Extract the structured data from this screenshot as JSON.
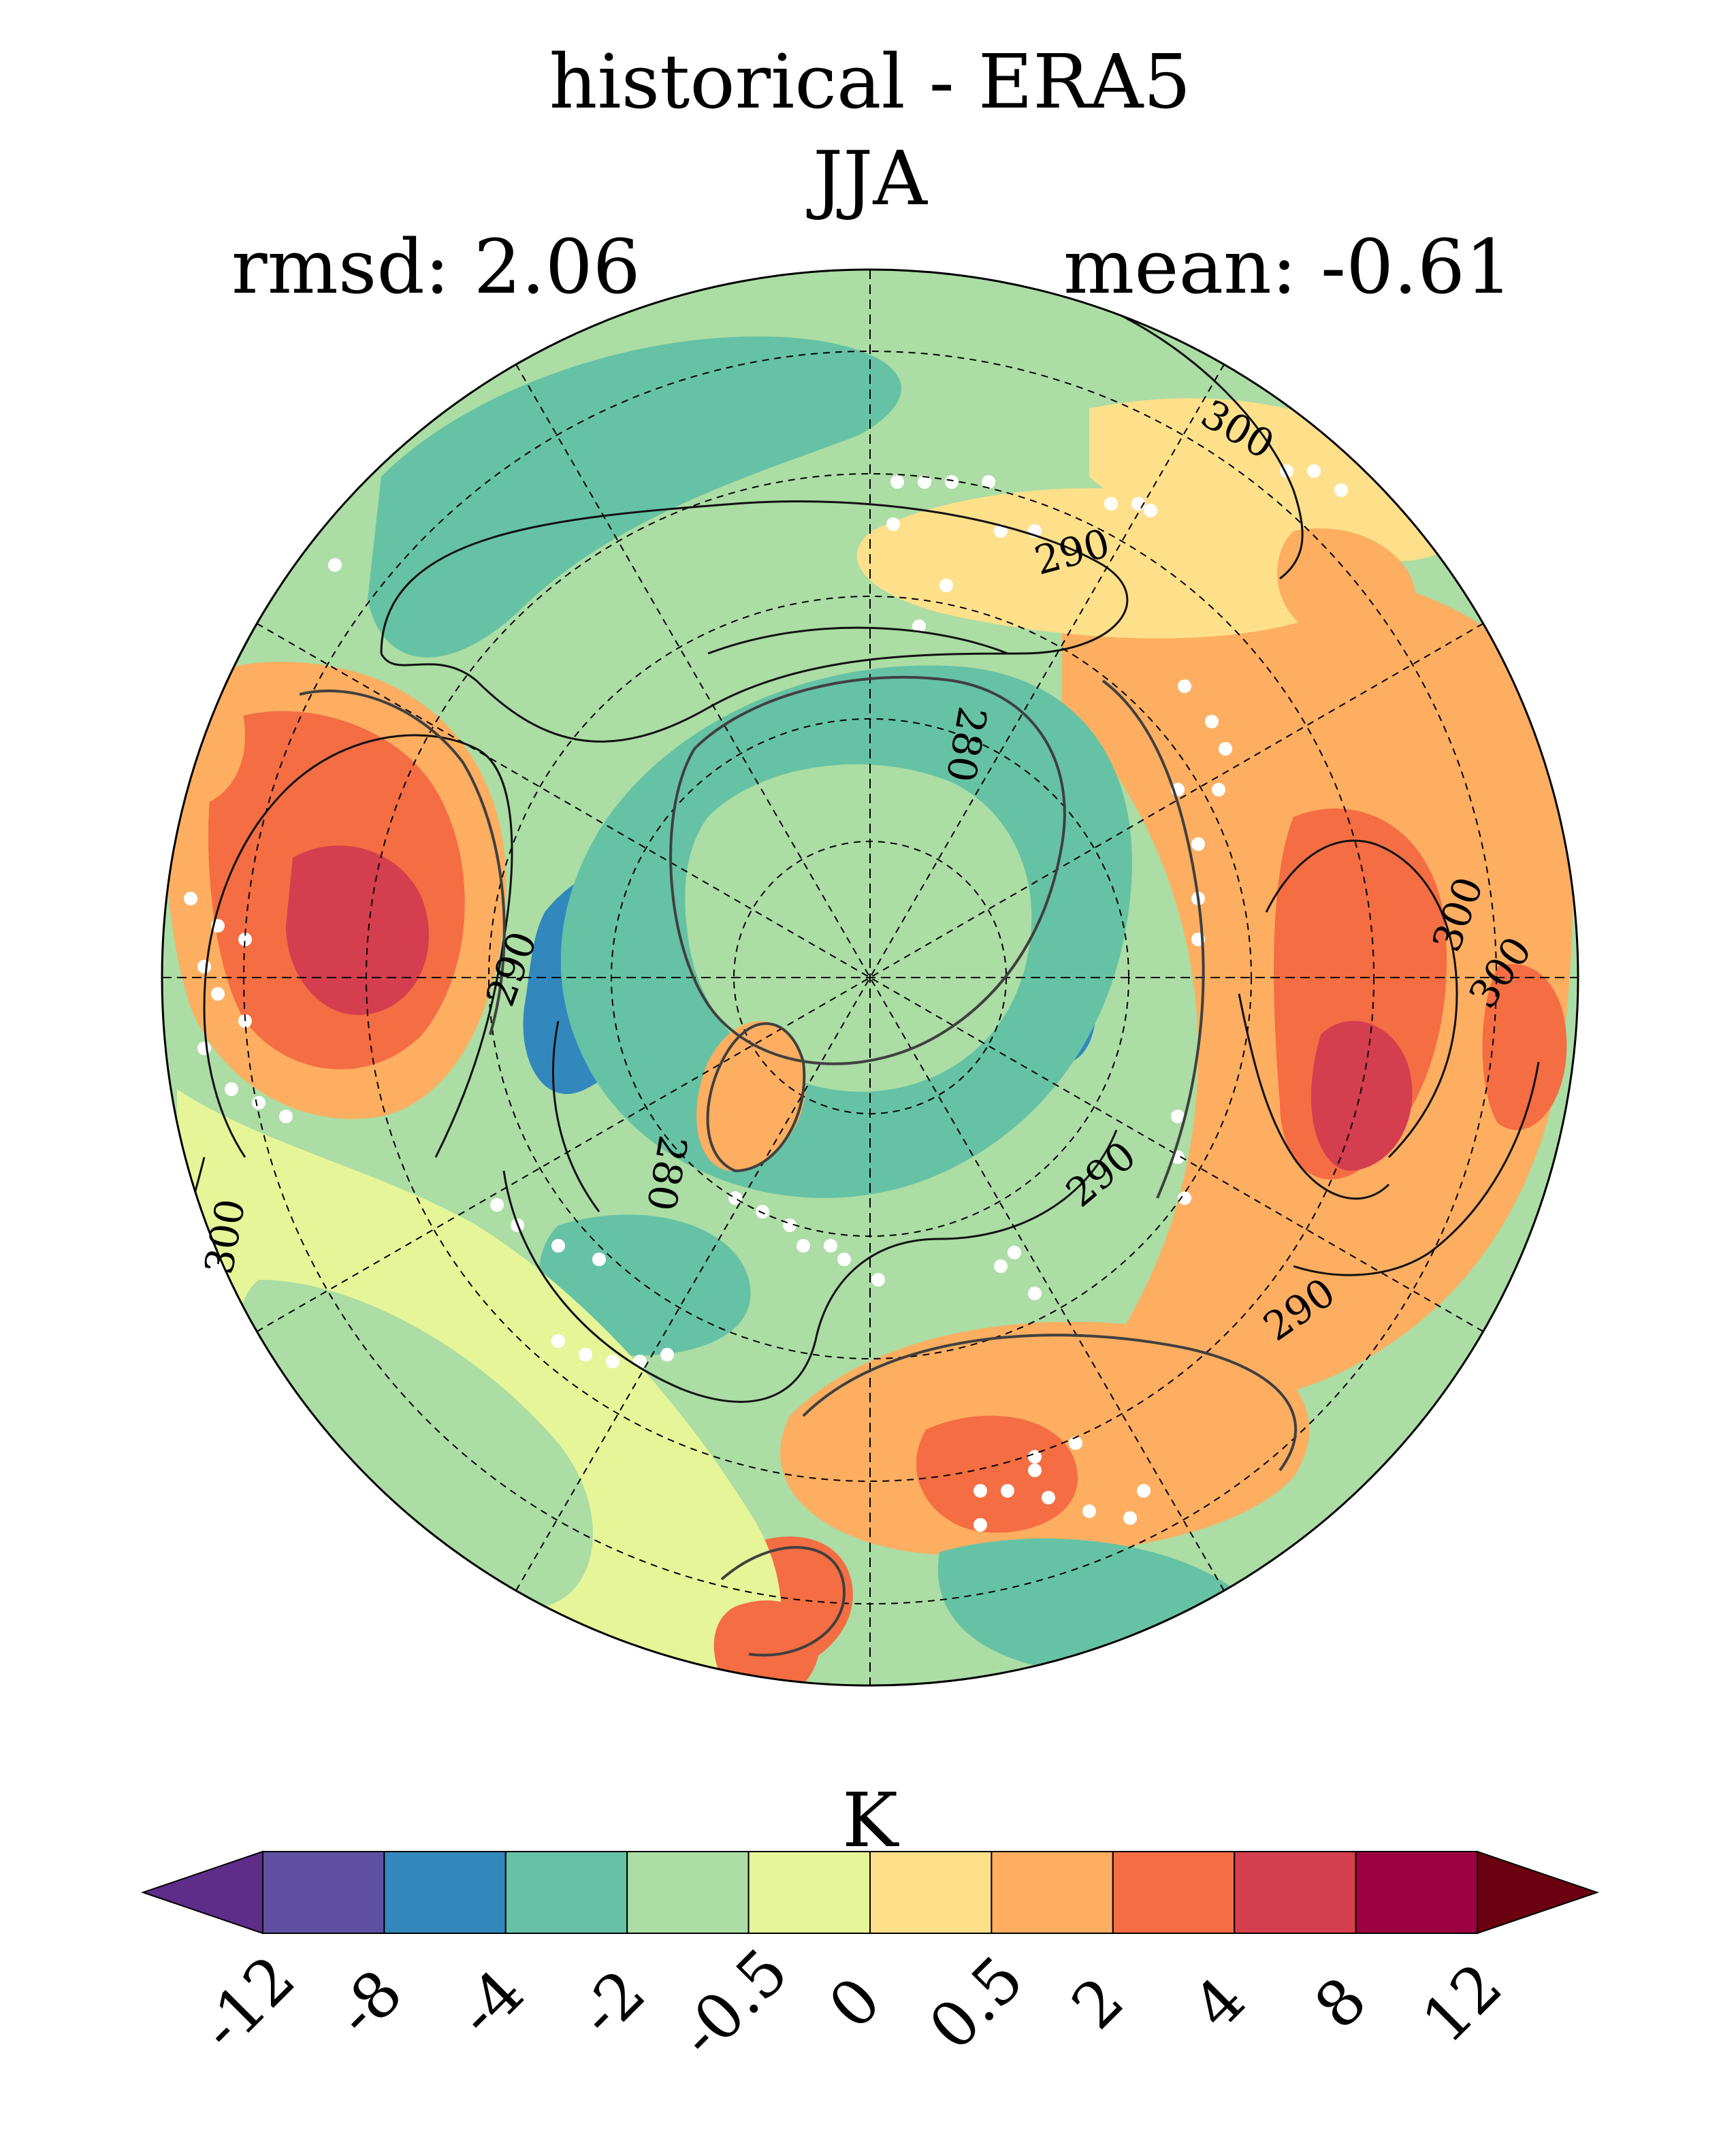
{
  "chart_data": {
    "type": "heatmap",
    "projection": "north polar stereographic",
    "title": "historical - ERA5",
    "subtitle": "JJA",
    "stats": {
      "rmsd_label": "rmsd: 2.06",
      "mean_label": "mean: -0.61",
      "rmsd": 2.06,
      "mean": -0.61
    },
    "colorbar": {
      "units": "K",
      "extend": "both",
      "levels": [
        -12,
        -8,
        -4,
        -2,
        -0.5,
        0,
        0.5,
        2,
        4,
        8,
        12
      ],
      "tick_labels": [
        "-12",
        "-8",
        "-4",
        "-2",
        "-0.5",
        "0",
        "0.5",
        "2",
        "4",
        "8",
        "12"
      ],
      "colors": [
        "#5e4fa2",
        "#3288bd",
        "#66c2a5",
        "#abdda4",
        "#e6f598",
        "#fee08b",
        "#fdae61",
        "#f46d43",
        "#d53e4f",
        "#9e0142"
      ],
      "under_color": "#5e2d8a",
      "over_color": "#6b0010"
    },
    "contour_labels": [
      "300",
      "290",
      "280",
      "290",
      "300",
      "290",
      "300",
      "280",
      "290",
      "300"
    ],
    "background_color": "#abdda4",
    "stippling_color": "#ffffff"
  }
}
